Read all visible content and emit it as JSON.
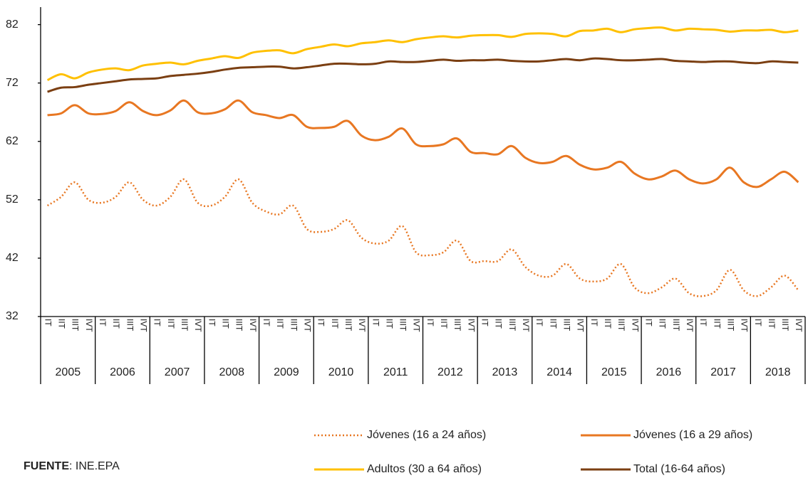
{
  "chart_data": {
    "type": "line",
    "categories": [
      "IT",
      "IIT",
      "IIIT",
      "IVT",
      "IT",
      "IIT",
      "IIIT",
      "IVT",
      "IT",
      "IIT",
      "IIIT",
      "IVT",
      "IT",
      "IIT",
      "IIIT",
      "IVT",
      "IT",
      "IIT",
      "IIIT",
      "IVT",
      "IT",
      "IIT",
      "IIIT",
      "IVT",
      "IT",
      "IIT",
      "IIIT",
      "IVT",
      "IT",
      "IIT",
      "IIIT",
      "IVT",
      "IT",
      "IIT",
      "IIIT",
      "IVT",
      "IT",
      "IIT",
      "IIIT",
      "IVT",
      "IT",
      "IIT",
      "IIIT",
      "IVT",
      "IT",
      "IIT",
      "IIIT",
      "IVT",
      "IT",
      "IIT",
      "IIIT",
      "IVT",
      "IT",
      "IIT",
      "IIIT",
      "IVT"
    ],
    "category_groups": [
      "2005",
      "2006",
      "2007",
      "2008",
      "2009",
      "2010",
      "2011",
      "2012",
      "2013",
      "2014",
      "2015",
      "2016",
      "2017",
      "2018"
    ],
    "series": [
      {
        "name": "Jóvenes (16 a 24 años)",
        "color": "#e87722",
        "dash": "dotted",
        "values": [
          51,
          52.5,
          55,
          52,
          51.5,
          52.5,
          55,
          52,
          51,
          52.5,
          55.5,
          51.5,
          51,
          52.5,
          55.5,
          51.5,
          50,
          49.5,
          51,
          47,
          46.5,
          47,
          48.5,
          45.5,
          44.5,
          45,
          47.5,
          43,
          42.5,
          43,
          45,
          41.5,
          41.5,
          41.5,
          43.5,
          40.5,
          39,
          39,
          41,
          38.5,
          38,
          38.5,
          41,
          37,
          36,
          37,
          38.5,
          36,
          35.5,
          36.5,
          40,
          36.5,
          35.5,
          37,
          39,
          36.5
        ]
      },
      {
        "name": "Jóvenes (16 a 29 años)",
        "color": "#e87722",
        "dash": "solid",
        "values": [
          66.5,
          66.8,
          68.2,
          66.8,
          66.7,
          67.2,
          68.7,
          67.2,
          66.5,
          67.3,
          69,
          67,
          66.8,
          67.5,
          69,
          67,
          66.5,
          66,
          66.5,
          64.5,
          64.3,
          64.5,
          65.5,
          63,
          62.2,
          62.8,
          64.2,
          61.5,
          61.2,
          61.5,
          62.5,
          60.2,
          60,
          59.8,
          61.2,
          59.2,
          58.3,
          58.5,
          59.5,
          58,
          57.2,
          57.5,
          58.5,
          56.5,
          55.5,
          56,
          57,
          55.5,
          54.8,
          55.5,
          57.5,
          55,
          54.2,
          55.5,
          56.8,
          55
        ]
      },
      {
        "name": "Adultos (30 a 64 años)",
        "color": "#ffc000",
        "dash": "solid",
        "values": [
          72.5,
          73.5,
          72.8,
          73.8,
          74.3,
          74.5,
          74.2,
          75,
          75.3,
          75.5,
          75.2,
          75.8,
          76.2,
          76.6,
          76.3,
          77.2,
          77.5,
          77.6,
          77.1,
          77.8,
          78.2,
          78.6,
          78.3,
          78.8,
          79,
          79.3,
          79,
          79.5,
          79.8,
          80,
          79.8,
          80.1,
          80.2,
          80.2,
          79.9,
          80.4,
          80.5,
          80.4,
          80,
          80.9,
          81,
          81.3,
          80.7,
          81.2,
          81.4,
          81.5,
          81,
          81.3,
          81.2,
          81.1,
          80.8,
          81,
          81,
          81.1,
          80.7,
          81
        ]
      },
      {
        "name": "Total (16-64 años)",
        "color": "#7b3f12",
        "dash": "solid",
        "values": [
          70.5,
          71.2,
          71.3,
          71.7,
          72,
          72.3,
          72.6,
          72.7,
          72.8,
          73.2,
          73.4,
          73.6,
          73.9,
          74.3,
          74.6,
          74.7,
          74.8,
          74.8,
          74.5,
          74.7,
          75,
          75.3,
          75.3,
          75.2,
          75.3,
          75.7,
          75.6,
          75.6,
          75.8,
          76,
          75.8,
          75.9,
          75.9,
          76,
          75.8,
          75.7,
          75.7,
          75.9,
          76.1,
          75.9,
          76.2,
          76.1,
          75.9,
          75.9,
          76,
          76.1,
          75.8,
          75.7,
          75.6,
          75.7,
          75.7,
          75.5,
          75.4,
          75.7,
          75.6,
          75.5
        ]
      }
    ],
    "ylim": [
      32,
      85
    ],
    "yticks": [
      32,
      42,
      52,
      62,
      72,
      82
    ],
    "grid": false,
    "source": [
      "FUENTE",
      ": INE.EPA"
    ]
  }
}
